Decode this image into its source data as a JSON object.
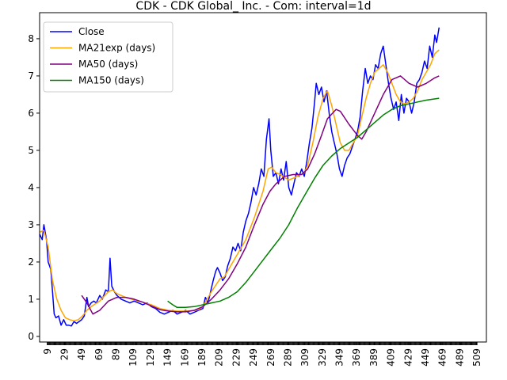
{
  "chart_data": {
    "type": "line",
    "title": "CDK - CDK Global_ Inc. - Com: interval=1d",
    "xlabel": "",
    "ylabel": "",
    "xlim": [
      0,
      520
    ],
    "ylim": [
      -0.15,
      8.7
    ],
    "grid": false,
    "legend_position": "upper-left",
    "x_ticks": [
      9,
      29,
      49,
      69,
      89,
      109,
      129,
      149,
      169,
      189,
      209,
      229,
      249,
      269,
      289,
      309,
      329,
      349,
      369,
      389,
      409,
      429,
      449,
      469,
      489,
      509
    ],
    "y_ticks": [
      0,
      1,
      2,
      3,
      4,
      5,
      6,
      7,
      8
    ],
    "series": [
      {
        "name": "Close",
        "color": "#0000ff",
        "points": [
          [
            0,
            2.75
          ],
          [
            3,
            2.6
          ],
          [
            5,
            3.0
          ],
          [
            8,
            2.6
          ],
          [
            10,
            2.0
          ],
          [
            13,
            1.8
          ],
          [
            15,
            1.2
          ],
          [
            17,
            0.6
          ],
          [
            19,
            0.5
          ],
          [
            22,
            0.55
          ],
          [
            25,
            0.3
          ],
          [
            28,
            0.45
          ],
          [
            31,
            0.3
          ],
          [
            34,
            0.3
          ],
          [
            37,
            0.28
          ],
          [
            40,
            0.4
          ],
          [
            43,
            0.35
          ],
          [
            46,
            0.4
          ],
          [
            49,
            0.45
          ],
          [
            52,
            0.55
          ],
          [
            55,
            1.05
          ],
          [
            57,
            0.8
          ],
          [
            60,
            0.9
          ],
          [
            63,
            0.95
          ],
          [
            66,
            0.9
          ],
          [
            70,
            1.1
          ],
          [
            73,
            1.0
          ],
          [
            77,
            1.25
          ],
          [
            80,
            1.2
          ],
          [
            82,
            2.1
          ],
          [
            84,
            1.35
          ],
          [
            87,
            1.2
          ],
          [
            90,
            1.1
          ],
          [
            95,
            1.0
          ],
          [
            100,
            0.95
          ],
          [
            105,
            0.9
          ],
          [
            110,
            0.95
          ],
          [
            115,
            0.9
          ],
          [
            120,
            0.85
          ],
          [
            125,
            0.9
          ],
          [
            130,
            0.8
          ],
          [
            135,
            0.75
          ],
          [
            140,
            0.65
          ],
          [
            145,
            0.6
          ],
          [
            150,
            0.65
          ],
          [
            155,
            0.7
          ],
          [
            160,
            0.6
          ],
          [
            165,
            0.65
          ],
          [
            170,
            0.7
          ],
          [
            175,
            0.6
          ],
          [
            180,
            0.65
          ],
          [
            185,
            0.7
          ],
          [
            190,
            0.75
          ],
          [
            193,
            1.05
          ],
          [
            196,
            0.9
          ],
          [
            199,
            1.2
          ],
          [
            202,
            1.5
          ],
          [
            205,
            1.75
          ],
          [
            207,
            1.85
          ],
          [
            210,
            1.7
          ],
          [
            213,
            1.5
          ],
          [
            216,
            1.6
          ],
          [
            219,
            1.9
          ],
          [
            222,
            2.1
          ],
          [
            225,
            2.4
          ],
          [
            228,
            2.3
          ],
          [
            231,
            2.5
          ],
          [
            234,
            2.3
          ],
          [
            237,
            2.8
          ],
          [
            240,
            3.1
          ],
          [
            243,
            3.3
          ],
          [
            246,
            3.6
          ],
          [
            249,
            4.0
          ],
          [
            252,
            3.8
          ],
          [
            255,
            4.1
          ],
          [
            258,
            4.5
          ],
          [
            261,
            4.3
          ],
          [
            264,
            5.3
          ],
          [
            267,
            5.85
          ],
          [
            269,
            5.0
          ],
          [
            272,
            4.3
          ],
          [
            275,
            4.4
          ],
          [
            278,
            4.1
          ],
          [
            281,
            4.5
          ],
          [
            284,
            4.2
          ],
          [
            287,
            4.7
          ],
          [
            290,
            4.0
          ],
          [
            293,
            3.8
          ],
          [
            296,
            4.1
          ],
          [
            299,
            4.4
          ],
          [
            302,
            4.3
          ],
          [
            305,
            4.5
          ],
          [
            308,
            4.3
          ],
          [
            311,
            4.7
          ],
          [
            314,
            5.2
          ],
          [
            317,
            5.6
          ],
          [
            320,
            6.3
          ],
          [
            322,
            6.8
          ],
          [
            325,
            6.5
          ],
          [
            328,
            6.7
          ],
          [
            331,
            6.3
          ],
          [
            334,
            6.6
          ],
          [
            337,
            6.0
          ],
          [
            340,
            5.5
          ],
          [
            343,
            5.2
          ],
          [
            346,
            4.9
          ],
          [
            349,
            4.5
          ],
          [
            352,
            4.3
          ],
          [
            355,
            4.6
          ],
          [
            358,
            4.8
          ],
          [
            361,
            4.9
          ],
          [
            364,
            5.1
          ],
          [
            367,
            5.3
          ],
          [
            370,
            5.5
          ],
          [
            373,
            5.9
          ],
          [
            376,
            6.6
          ],
          [
            379,
            7.2
          ],
          [
            382,
            6.8
          ],
          [
            385,
            7.0
          ],
          [
            388,
            6.9
          ],
          [
            391,
            7.3
          ],
          [
            394,
            7.2
          ],
          [
            397,
            7.6
          ],
          [
            400,
            7.8
          ],
          [
            403,
            7.3
          ],
          [
            406,
            6.8
          ],
          [
            409,
            6.4
          ],
          [
            412,
            6.1
          ],
          [
            415,
            6.3
          ],
          [
            418,
            5.8
          ],
          [
            421,
            6.5
          ],
          [
            424,
            6.0
          ],
          [
            427,
            6.4
          ],
          [
            430,
            6.3
          ],
          [
            433,
            6.0
          ],
          [
            436,
            6.3
          ],
          [
            439,
            6.8
          ],
          [
            442,
            6.9
          ],
          [
            445,
            7.1
          ],
          [
            448,
            7.4
          ],
          [
            451,
            7.2
          ],
          [
            454,
            7.8
          ],
          [
            457,
            7.5
          ],
          [
            460,
            8.1
          ],
          [
            462,
            7.9
          ],
          [
            465,
            8.3
          ]
        ]
      },
      {
        "name": "MA21exp (days)",
        "color": "#ffa500",
        "points": [
          [
            0,
            2.8
          ],
          [
            5,
            2.85
          ],
          [
            10,
            2.4
          ],
          [
            15,
            1.5
          ],
          [
            20,
            1.0
          ],
          [
            25,
            0.7
          ],
          [
            30,
            0.5
          ],
          [
            35,
            0.45
          ],
          [
            40,
            0.42
          ],
          [
            45,
            0.45
          ],
          [
            50,
            0.55
          ],
          [
            55,
            0.7
          ],
          [
            60,
            0.8
          ],
          [
            70,
            0.95
          ],
          [
            80,
            1.2
          ],
          [
            85,
            1.25
          ],
          [
            90,
            1.15
          ],
          [
            100,
            1.05
          ],
          [
            110,
            0.98
          ],
          [
            120,
            0.92
          ],
          [
            130,
            0.85
          ],
          [
            140,
            0.75
          ],
          [
            150,
            0.7
          ],
          [
            160,
            0.68
          ],
          [
            170,
            0.68
          ],
          [
            180,
            0.7
          ],
          [
            185,
            0.72
          ],
          [
            190,
            0.8
          ],
          [
            200,
            1.2
          ],
          [
            210,
            1.55
          ],
          [
            215,
            1.6
          ],
          [
            220,
            1.8
          ],
          [
            230,
            2.2
          ],
          [
            240,
            2.6
          ],
          [
            250,
            3.2
          ],
          [
            260,
            3.9
          ],
          [
            266,
            4.5
          ],
          [
            270,
            4.55
          ],
          [
            275,
            4.4
          ],
          [
            280,
            4.35
          ],
          [
            290,
            4.2
          ],
          [
            300,
            4.3
          ],
          [
            308,
            4.4
          ],
          [
            312,
            4.6
          ],
          [
            318,
            5.2
          ],
          [
            324,
            5.9
          ],
          [
            330,
            6.4
          ],
          [
            335,
            6.6
          ],
          [
            340,
            6.2
          ],
          [
            345,
            5.7
          ],
          [
            350,
            5.2
          ],
          [
            355,
            5.0
          ],
          [
            360,
            5.0
          ],
          [
            365,
            5.2
          ],
          [
            370,
            5.4
          ],
          [
            375,
            5.9
          ],
          [
            380,
            6.4
          ],
          [
            385,
            6.8
          ],
          [
            390,
            7.1
          ],
          [
            395,
            7.2
          ],
          [
            400,
            7.3
          ],
          [
            405,
            7.1
          ],
          [
            410,
            6.8
          ],
          [
            415,
            6.5
          ],
          [
            420,
            6.3
          ],
          [
            425,
            6.25
          ],
          [
            430,
            6.3
          ],
          [
            435,
            6.4
          ],
          [
            440,
            6.6
          ],
          [
            445,
            6.9
          ],
          [
            450,
            7.1
          ],
          [
            455,
            7.3
          ],
          [
            460,
            7.6
          ],
          [
            465,
            7.7
          ]
        ]
      },
      {
        "name": "MA50 (days)",
        "color": "#800080",
        "points": [
          [
            49,
            1.1
          ],
          [
            55,
            0.9
          ],
          [
            62,
            0.6
          ],
          [
            70,
            0.7
          ],
          [
            80,
            0.95
          ],
          [
            90,
            1.05
          ],
          [
            100,
            1.05
          ],
          [
            110,
            1.0
          ],
          [
            120,
            0.92
          ],
          [
            130,
            0.82
          ],
          [
            140,
            0.72
          ],
          [
            150,
            0.68
          ],
          [
            160,
            0.66
          ],
          [
            170,
            0.66
          ],
          [
            180,
            0.7
          ],
          [
            190,
            0.8
          ],
          [
            200,
            1.0
          ],
          [
            210,
            1.25
          ],
          [
            220,
            1.55
          ],
          [
            230,
            1.95
          ],
          [
            240,
            2.4
          ],
          [
            250,
            3.0
          ],
          [
            260,
            3.55
          ],
          [
            268,
            3.9
          ],
          [
            275,
            4.1
          ],
          [
            285,
            4.3
          ],
          [
            295,
            4.35
          ],
          [
            305,
            4.35
          ],
          [
            312,
            4.5
          ],
          [
            320,
            4.9
          ],
          [
            328,
            5.4
          ],
          [
            335,
            5.85
          ],
          [
            345,
            6.1
          ],
          [
            350,
            6.05
          ],
          [
            360,
            5.7
          ],
          [
            370,
            5.4
          ],
          [
            375,
            5.3
          ],
          [
            380,
            5.5
          ],
          [
            390,
            6.0
          ],
          [
            400,
            6.5
          ],
          [
            410,
            6.9
          ],
          [
            420,
            7.0
          ],
          [
            430,
            6.8
          ],
          [
            440,
            6.7
          ],
          [
            450,
            6.8
          ],
          [
            460,
            6.95
          ],
          [
            465,
            7.0
          ]
        ]
      },
      {
        "name": "MA150 (days)",
        "color": "#008000",
        "points": [
          [
            149,
            0.95
          ],
          [
            155,
            0.85
          ],
          [
            160,
            0.78
          ],
          [
            170,
            0.78
          ],
          [
            180,
            0.8
          ],
          [
            190,
            0.85
          ],
          [
            200,
            0.9
          ],
          [
            210,
            0.95
          ],
          [
            220,
            1.05
          ],
          [
            230,
            1.2
          ],
          [
            240,
            1.45
          ],
          [
            250,
            1.75
          ],
          [
            260,
            2.05
          ],
          [
            270,
            2.35
          ],
          [
            280,
            2.65
          ],
          [
            290,
            3.0
          ],
          [
            300,
            3.45
          ],
          [
            310,
            3.85
          ],
          [
            320,
            4.25
          ],
          [
            330,
            4.6
          ],
          [
            340,
            4.85
          ],
          [
            350,
            5.05
          ],
          [
            360,
            5.2
          ],
          [
            370,
            5.35
          ],
          [
            380,
            5.55
          ],
          [
            390,
            5.75
          ],
          [
            400,
            5.95
          ],
          [
            410,
            6.1
          ],
          [
            420,
            6.2
          ],
          [
            430,
            6.25
          ],
          [
            440,
            6.3
          ],
          [
            450,
            6.35
          ],
          [
            465,
            6.4
          ]
        ]
      }
    ]
  }
}
